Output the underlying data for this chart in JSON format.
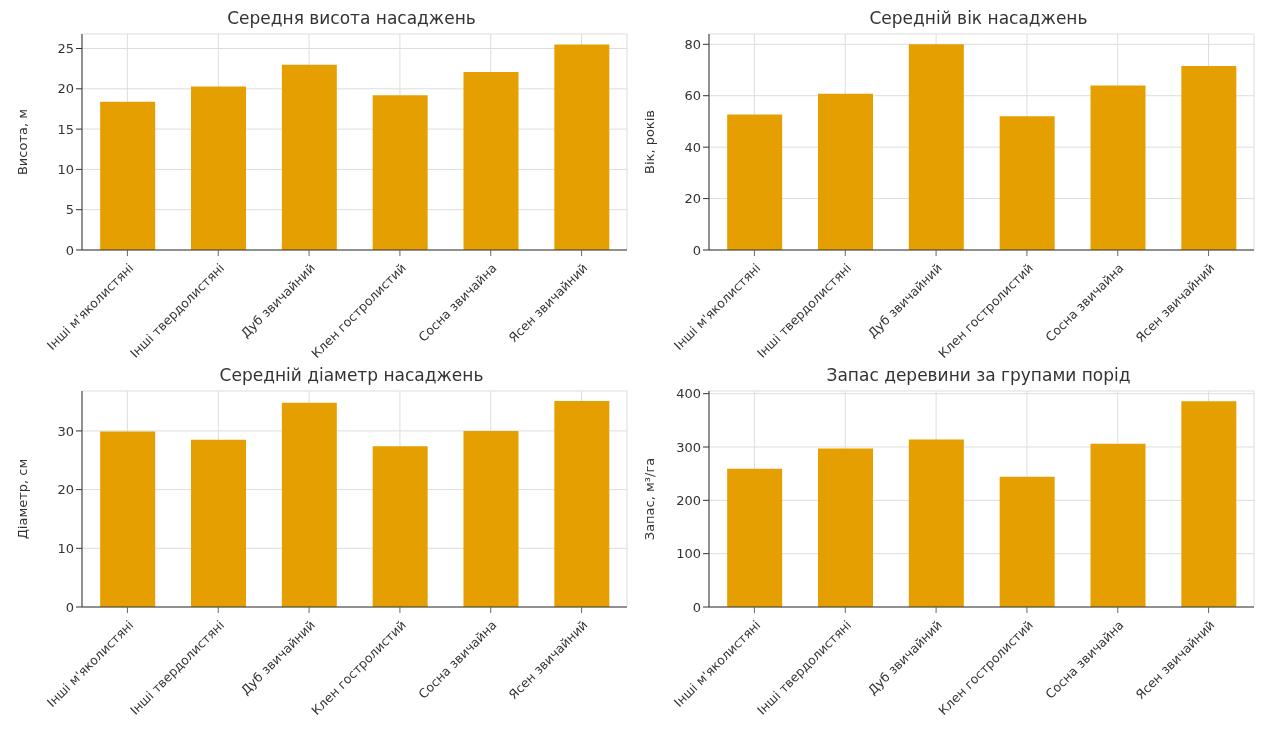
{
  "chart_data": [
    {
      "type": "bar",
      "title": "Середня висота насаджень",
      "ylabel": "Висота, м",
      "categories": [
        "Інші м'яколистяні",
        "Інші твердолистяні",
        "Дуб звичайний",
        "Клен гостролистий",
        "Сосна звичайна",
        "Ясен звичайний"
      ],
      "values": [
        18.4,
        20.3,
        23.0,
        19.2,
        22.1,
        25.5
      ],
      "color": "#e69f00",
      "ylim": [
        0,
        26.8
      ],
      "yticks": [
        0,
        5,
        10,
        15,
        20,
        25
      ],
      "grid": true
    },
    {
      "type": "bar",
      "title": "Середній вік насаджень",
      "ylabel": "Вік, років",
      "categories": [
        "Інші м'яколистяні",
        "Інші твердолистяні",
        "Дуб звичайний",
        "Клен гостролистий",
        "Сосна звичайна",
        "Ясен звичайний"
      ],
      "values": [
        52.7,
        60.8,
        80,
        52.0,
        64,
        71.6
      ],
      "color": "#e69f00",
      "ylim": [
        0,
        84
      ],
      "yticks": [
        0,
        20,
        40,
        60,
        80
      ],
      "grid": true
    },
    {
      "type": "bar",
      "title": "Середній діаметр насаджень",
      "ylabel": "Діаметр, см",
      "categories": [
        "Інші м'яколистяні",
        "Інші твердолистяні",
        "Дуб звичайний",
        "Клен гостролистий",
        "Сосна звичайна",
        "Ясен звичайний"
      ],
      "values": [
        29.9,
        28.5,
        34.8,
        27.4,
        30.0,
        35.1
      ],
      "color": "#e69f00",
      "ylim": [
        0,
        36.8
      ],
      "yticks": [
        0,
        10,
        20,
        30
      ],
      "grid": true
    },
    {
      "type": "bar",
      "title": "Запас деревини за групами порід",
      "ylabel": "Запас, м³/га",
      "categories": [
        "Інші м'яколистяні",
        "Інші твердолистяні",
        "Дуб звичайний",
        "Клен гостролистий",
        "Сосна звичайна",
        "Ясен звичайний"
      ],
      "values": [
        259,
        297,
        314,
        244,
        306,
        386
      ],
      "color": "#e69f00",
      "ylim": [
        0,
        405
      ],
      "yticks": [
        0,
        100,
        200,
        300,
        400
      ],
      "grid": true
    }
  ]
}
